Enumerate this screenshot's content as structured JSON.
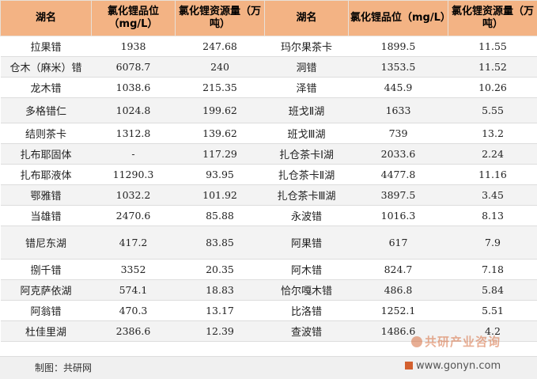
{
  "headers": [
    "湖名",
    "氯化锂品位（mg/L）",
    "氯化锂资源量（万吨）",
    "湖名",
    "氯化锂品位（mg/L）",
    "氯化锂资源量（万吨）"
  ],
  "rows": [
    {
      "name_left": "拉果错",
      "grade_left": "1938",
      "resource_left": "247.68",
      "name_right": "玛尔果茶卡",
      "grade_right": "1899.5",
      "resource_right": "11.55"
    },
    {
      "name_left": "仓木（麻米）错",
      "grade_left": "6078.7",
      "resource_left": "240",
      "name_right": "洞错",
      "grade_right": "1353.5",
      "resource_right": "11.52"
    },
    {
      "name_left": "龙木错",
      "grade_left": "1038.6",
      "resource_left": "215.35",
      "name_right": "泽错",
      "grade_right": "445.9",
      "resource_right": "10.26"
    },
    {
      "name_left": "多格错仁",
      "grade_left": "1024.8",
      "resource_left": "199.62",
      "name_right": "班戈Ⅱ湖",
      "grade_right": "1633",
      "resource_right": "5.55"
    },
    {
      "name_left": "结则茶卡",
      "grade_left": "1312.8",
      "resource_left": "139.62",
      "name_right": "班戈Ⅲ湖",
      "grade_right": "739",
      "resource_right": "13.2"
    },
    {
      "name_left": "扎布耶固体",
      "grade_left": "-",
      "resource_left": "117.29",
      "name_right": "扎仓茶卡Ⅰ湖",
      "grade_right": "2033.6",
      "resource_right": "2.24"
    },
    {
      "name_left": "扎布耶液体",
      "grade_left": "11290.3",
      "resource_left": "93.95",
      "name_right": "扎仓茶卡Ⅱ湖",
      "grade_right": "4477.8",
      "resource_right": "11.16"
    },
    {
      "name_left": "鄂雅错",
      "grade_left": "1032.2",
      "resource_left": "101.92",
      "name_right": "扎仓茶卡Ⅲ湖",
      "grade_right": "3897.5",
      "resource_right": "3.45"
    },
    {
      "name_left": "当雄错",
      "grade_left": "2470.6",
      "resource_left": "85.88",
      "name_right": "永波错",
      "grade_right": "1016.3",
      "resource_right": "8.13"
    },
    {
      "name_left": "错尼东湖",
      "grade_left": "417.2",
      "resource_left": "83.85",
      "name_right": "阿果错",
      "grade_right": "617",
      "resource_right": "7.9"
    },
    {
      "name_left": "捌千错",
      "grade_left": "3352",
      "resource_left": "20.35",
      "name_right": "阿木错",
      "grade_right": "824.7",
      "resource_right": "7.18"
    },
    {
      "name_left": "阿克萨依湖",
      "grade_left": "574.1",
      "resource_left": "18.83",
      "name_right": "恰尔嘎木错",
      "grade_right": "486.8",
      "resource_right": "5.84"
    },
    {
      "name_left": "阿翁错",
      "grade_left": "470.3",
      "resource_left": "13.17",
      "name_right": "比洛错",
      "grade_right": "1252.1",
      "resource_right": "5.51"
    },
    {
      "name_left": "杜佳里湖",
      "grade_left": "2386.6",
      "resource_left": "12.39",
      "name_right": "查波错",
      "grade_right": "1486.6",
      "resource_right": "4.2"
    }
  ],
  "footer": {
    "label": "制图：共研网"
  },
  "watermark": {
    "text": "共研产业咨询",
    "url": "www.gonyn.com"
  },
  "colors": {
    "header_bg": "#f3b384",
    "row_alt_bg": "#f3f3f3",
    "footer_bg": "#f0f0f0"
  }
}
